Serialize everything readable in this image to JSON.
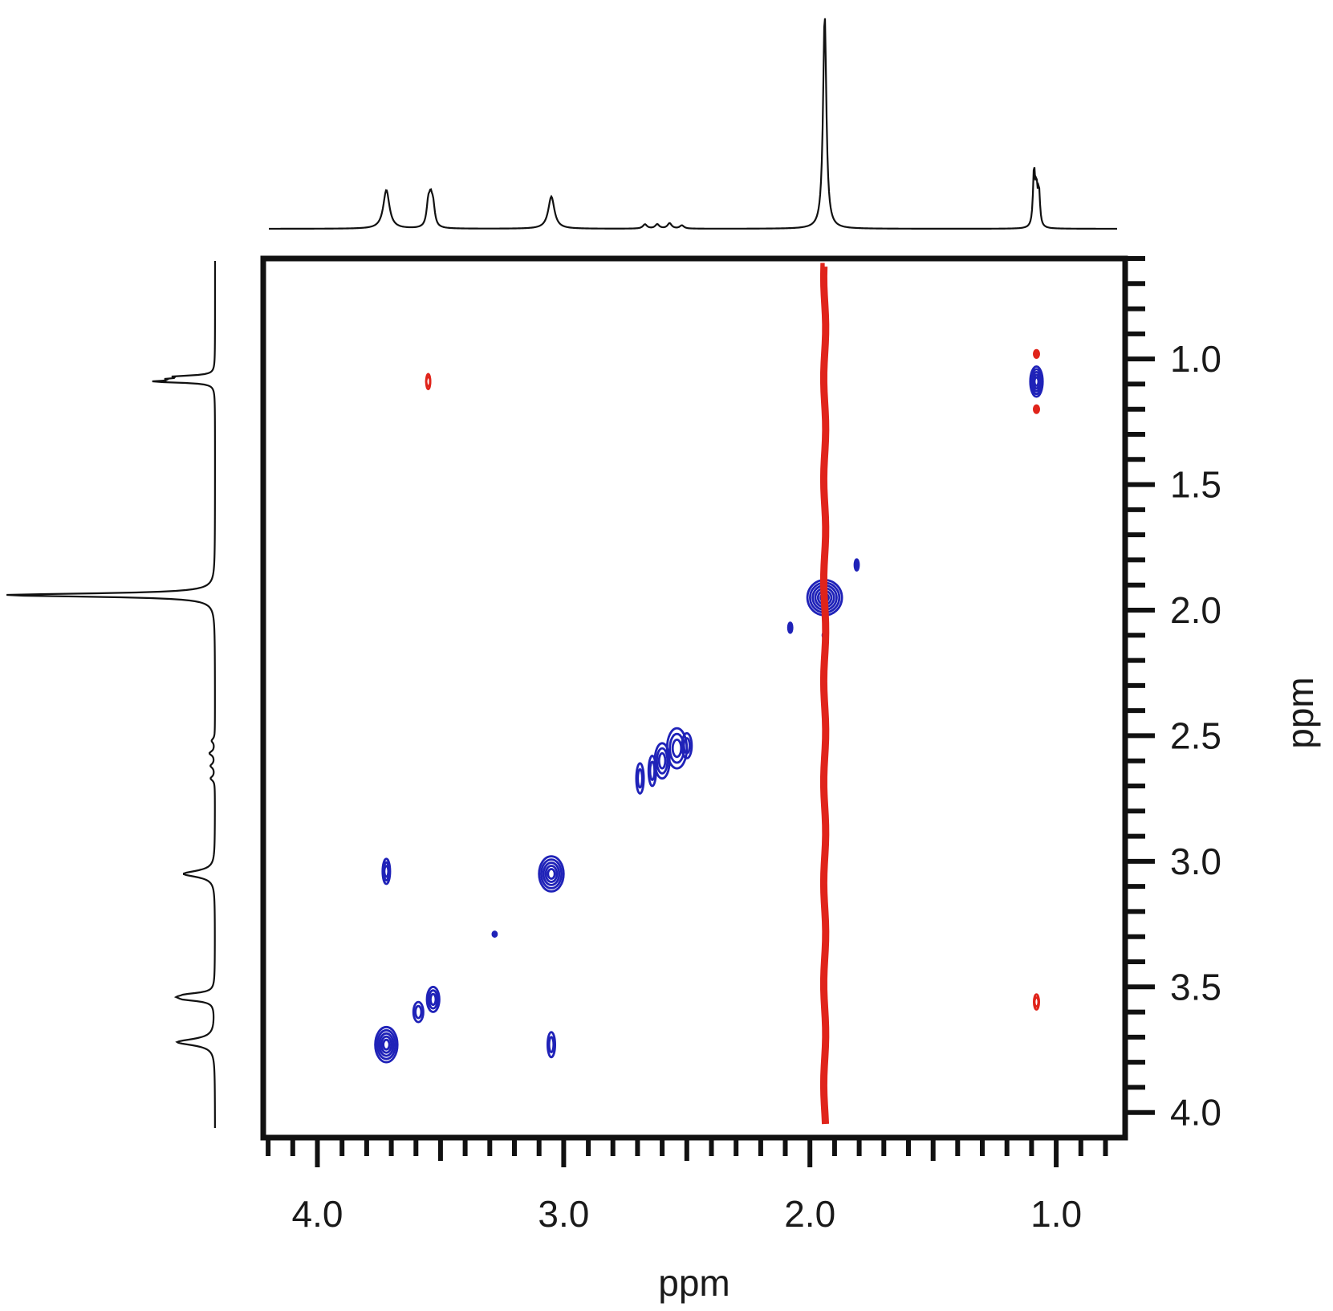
{
  "chart_data": {
    "type": "contour",
    "title": "",
    "xlabel": "ppm",
    "ylabel": "ppm",
    "x_axis": {
      "range": [
        4.22,
        0.72
      ],
      "reversed": true,
      "major_ticks": [
        4.0,
        3.0,
        2.0,
        1.0
      ],
      "major_tick_labels": [
        "4.0",
        "3.0",
        "2.0",
        "1.0"
      ],
      "minor_step": 0.1,
      "position": "bottom"
    },
    "y_axis": {
      "range": [
        0.6,
        4.1
      ],
      "reversed": true,
      "major_ticks": [
        1.0,
        1.5,
        2.0,
        2.5,
        3.0,
        3.5,
        4.0
      ],
      "major_tick_labels": [
        "1.0",
        "1.5",
        "2.0",
        "2.5",
        "3.0",
        "3.5",
        "4.0"
      ],
      "minor_step": 0.1,
      "position": "right"
    },
    "projections": {
      "top": "1D spectrum",
      "left": "1D spectrum",
      "peaks": [
        {
          "ppm": 3.72,
          "height": 0.18,
          "width": 0.015
        },
        {
          "ppm": 3.55,
          "height": 0.1,
          "width": 0.008
        },
        {
          "ppm": 3.54,
          "height": 0.11,
          "width": 0.008
        },
        {
          "ppm": 3.53,
          "height": 0.09,
          "width": 0.008
        },
        {
          "ppm": 3.05,
          "height": 0.15,
          "width": 0.015
        },
        {
          "ppm": 2.67,
          "height": 0.02,
          "width": 0.01
        },
        {
          "ppm": 2.62,
          "height": 0.02,
          "width": 0.01
        },
        {
          "ppm": 2.57,
          "height": 0.025,
          "width": 0.01
        },
        {
          "ppm": 2.52,
          "height": 0.015,
          "width": 0.01
        },
        {
          "ppm": 1.94,
          "height": 1.0,
          "width": 0.008
        },
        {
          "ppm": 1.09,
          "height": 0.26,
          "width": 0.005
        },
        {
          "ppm": 1.08,
          "height": 0.16,
          "width": 0.005
        },
        {
          "ppm": 1.07,
          "height": 0.16,
          "width": 0.005
        }
      ]
    },
    "series": [
      {
        "color": "#1f22b8",
        "sign": "positive",
        "peaks": [
          {
            "x": 1.08,
            "y": 1.09,
            "rx": 0.025,
            "ry": 0.06,
            "levels": 5
          },
          {
            "x": 1.94,
            "y": 1.95,
            "rx": 0.07,
            "ry": 0.07,
            "levels": 6
          },
          {
            "x": 3.05,
            "y": 3.05,
            "rx": 0.05,
            "ry": 0.07,
            "levels": 5
          },
          {
            "x": 3.72,
            "y": 3.04,
            "rx": 0.015,
            "ry": 0.05,
            "levels": 3
          },
          {
            "x": 3.72,
            "y": 3.73,
            "rx": 0.045,
            "ry": 0.07,
            "levels": 5
          },
          {
            "x": 3.53,
            "y": 3.55,
            "rx": 0.025,
            "ry": 0.05,
            "levels": 3
          },
          {
            "x": 3.59,
            "y": 3.6,
            "rx": 0.02,
            "ry": 0.04,
            "levels": 2
          },
          {
            "x": 3.05,
            "y": 3.73,
            "rx": 0.015,
            "ry": 0.05,
            "levels": 2
          },
          {
            "x": 2.69,
            "y": 2.67,
            "rx": 0.015,
            "ry": 0.06,
            "levels": 2
          },
          {
            "x": 2.64,
            "y": 2.64,
            "rx": 0.015,
            "ry": 0.06,
            "levels": 2
          },
          {
            "x": 2.6,
            "y": 2.6,
            "rx": 0.03,
            "ry": 0.07,
            "levels": 3
          },
          {
            "x": 2.54,
            "y": 2.55,
            "rx": 0.04,
            "ry": 0.08,
            "levels": 3
          },
          {
            "x": 2.5,
            "y": 2.54,
            "rx": 0.02,
            "ry": 0.05,
            "levels": 2
          },
          {
            "x": 1.94,
            "y": 1.8,
            "rx": 0.007,
            "ry": 0.012,
            "levels": 1
          },
          {
            "x": 1.94,
            "y": 2.1,
            "rx": 0.007,
            "ry": 0.012,
            "levels": 1
          },
          {
            "x": 1.81,
            "y": 1.82,
            "rx": 0.006,
            "ry": 0.022,
            "levels": 1
          },
          {
            "x": 2.08,
            "y": 2.07,
            "rx": 0.005,
            "ry": 0.02,
            "levels": 1
          },
          {
            "x": 3.28,
            "y": 3.29,
            "rx": 0.005,
            "ry": 0.01,
            "levels": 1
          }
        ]
      },
      {
        "color": "#e0241b",
        "sign": "negative",
        "peaks": [
          {
            "x": 3.55,
            "y": 1.09,
            "rx": 0.008,
            "ry": 0.03,
            "levels": 2
          },
          {
            "x": 1.08,
            "y": 3.56,
            "rx": 0.01,
            "ry": 0.03,
            "levels": 2
          },
          {
            "x": 1.08,
            "y": 0.98,
            "rx": 0.01,
            "ry": 0.015,
            "levels": 1
          },
          {
            "x": 1.08,
            "y": 1.2,
            "rx": 0.01,
            "ry": 0.015,
            "levels": 1
          }
        ],
        "lines": [
          {
            "orientation": "vertical",
            "x": 1.94,
            "y_from": 0.6,
            "y_to": 4.1
          }
        ]
      }
    ],
    "grid": false,
    "legend": "none"
  }
}
